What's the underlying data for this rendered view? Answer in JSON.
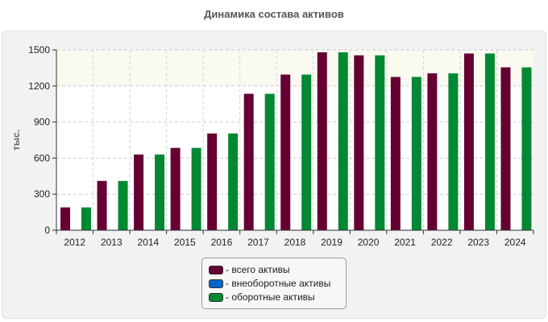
{
  "colors": {
    "total": "#660033",
    "noncurrent": "#0066cc",
    "current": "#008833"
  },
  "chart_data": {
    "type": "bar",
    "title": "Динамика состава активов",
    "xlabel": "",
    "ylabel": "тыс.",
    "ylim": [
      0,
      1500
    ],
    "yticks": [
      0,
      300,
      600,
      900,
      1200,
      1500
    ],
    "categories": [
      "2012",
      "2013",
      "2014",
      "2015",
      "2016",
      "2017",
      "2018",
      "2019",
      "2020",
      "2021",
      "2022",
      "2023",
      "2024"
    ],
    "series": [
      {
        "key": "total",
        "name": "- всего активы",
        "values": [
          190,
          410,
          630,
          685,
          805,
          1135,
          1295,
          1480,
          1455,
          1275,
          1305,
          1470,
          1355
        ]
      },
      {
        "key": "noncurrent",
        "name": "- внеоборотные активы",
        "values": [
          3,
          3,
          3,
          3,
          3,
          3,
          3,
          3,
          3,
          3,
          3,
          3,
          3
        ]
      },
      {
        "key": "current",
        "name": "- оборотные активы",
        "values": [
          190,
          410,
          630,
          685,
          805,
          1135,
          1295,
          1480,
          1455,
          1275,
          1305,
          1470,
          1355
        ]
      }
    ],
    "legend_position": "bottom-center",
    "grid": true
  }
}
